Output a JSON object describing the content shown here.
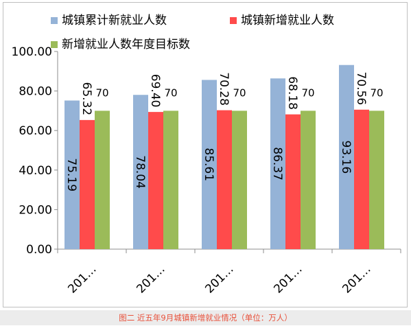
{
  "caption": "图二 近五年9月城镇新增就业情况（单位：万人）",
  "chart_data": {
    "type": "bar",
    "categories": [
      "201…",
      "201…",
      "201…",
      "201…",
      "201…"
    ],
    "series": [
      {
        "name": "城镇累计新就业人数",
        "color": "#95b3d7",
        "values": [
          75.19,
          78.04,
          85.61,
          86.37,
          93.16
        ],
        "labels": [
          "75.19",
          "78.04",
          "85.61",
          "86.37",
          "93.16"
        ]
      },
      {
        "name": "城镇新增就业人数",
        "color": "#ff4b4b",
        "values": [
          65.32,
          69.4,
          70.28,
          68.18,
          70.56
        ],
        "labels": [
          "65.32",
          "69.40",
          "70.28",
          "68.18",
          "70.56"
        ]
      },
      {
        "name": "新增就业人数年度目标数",
        "color": "#9bbb59",
        "values": [
          70,
          70,
          70,
          70,
          70
        ],
        "labels": [
          "70",
          "70",
          "70",
          "70",
          "70"
        ]
      }
    ],
    "y_ticks": [
      "0.00",
      "20.00",
      "40.00",
      "60.00",
      "80.00",
      "100.00"
    ],
    "ylim": [
      0,
      100
    ],
    "grid": false,
    "legend_position": "top-left"
  }
}
